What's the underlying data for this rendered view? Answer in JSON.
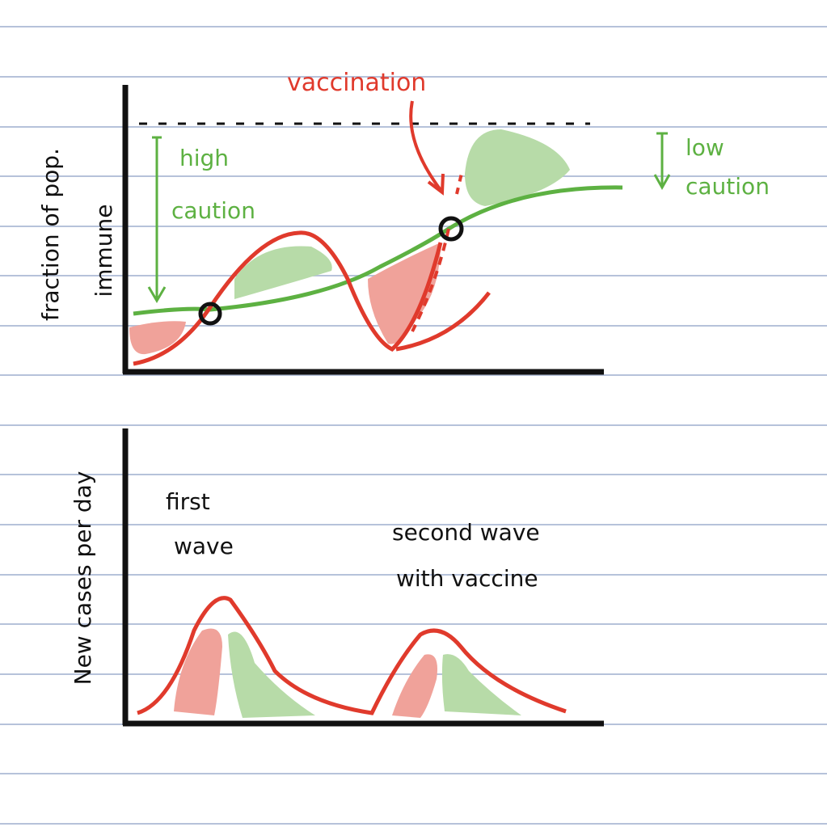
{
  "top_panel": {
    "y_axis_label": [
      "fraction of pop.",
      "immune"
    ],
    "annotation_top": "vaccination",
    "left_note": [
      "high",
      "caution"
    ],
    "right_note": [
      "low",
      "caution"
    ]
  },
  "bottom_panel": {
    "y_axis_label": "New cases per day",
    "first_label": [
      "first",
      "wave"
    ],
    "second_label": [
      "second wave",
      "with vaccine"
    ]
  }
}
